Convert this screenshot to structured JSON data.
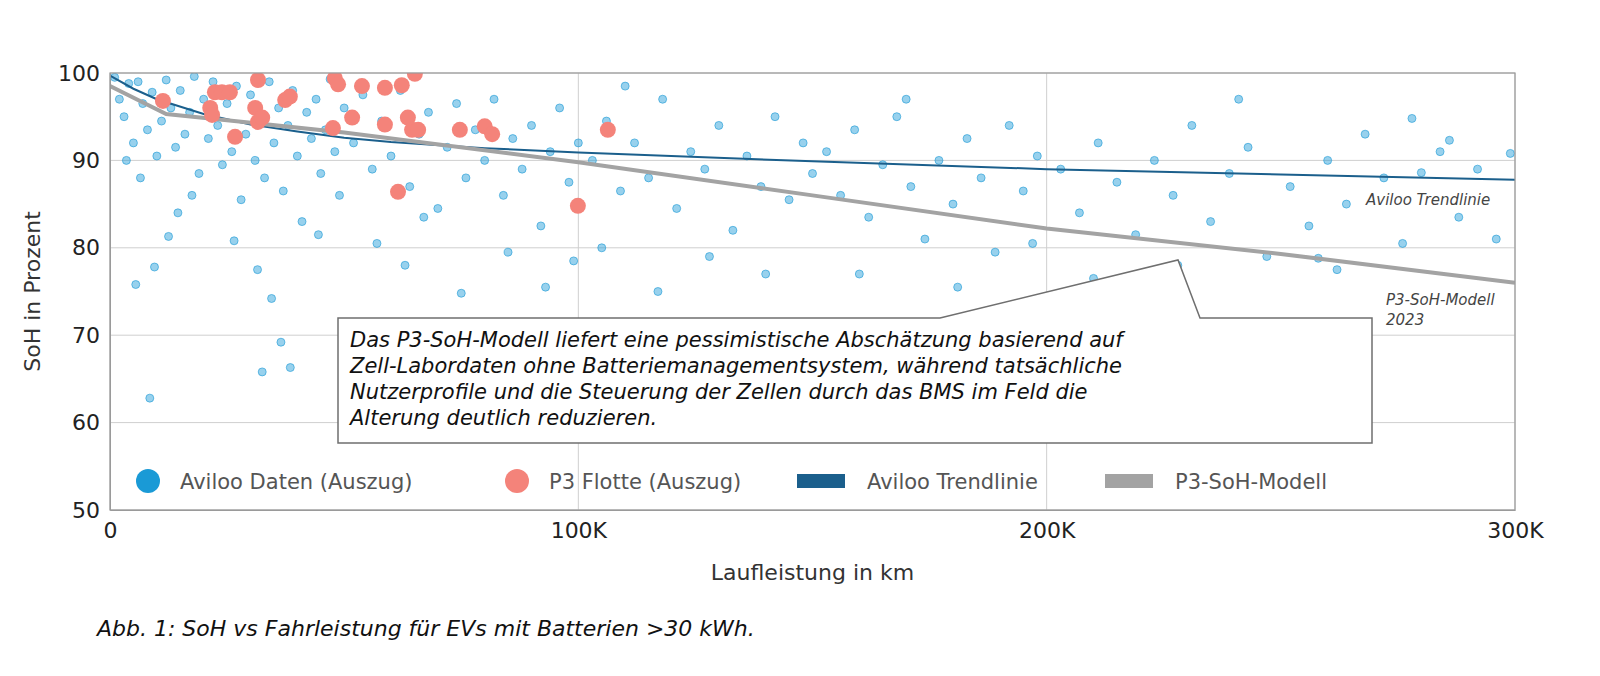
{
  "chart_data": {
    "type": "scatter",
    "caption": "Abb. 1: SoH vs Fahrleistung für EVs mit Batterien >30 kWh.",
    "x_label": "Laufleistung in km",
    "y_label": "SoH in Prozent",
    "xlim": [
      0,
      300000
    ],
    "ylim": [
      50,
      100
    ],
    "xticks": [
      0,
      {
        "value": 100000,
        "label": "100K"
      },
      {
        "value": 200000,
        "label": "200K"
      },
      {
        "value": 300000,
        "label": "300K"
      }
    ],
    "yticks": [
      50,
      60,
      70,
      80,
      90,
      100
    ],
    "grid": true,
    "legend": "bottom",
    "annotations": [
      {
        "lines": [
          "Aviloo Trendlinie"
        ]
      },
      {
        "lines": [
          "P3-SoH-Modell",
          "2023"
        ]
      },
      {
        "lines": [
          "Das P3-SoH-Modell liefert eine pessimistische Abschätzung basierend auf",
          "Zell-Labordaten ohne Batteriemanagementsystem, während tatsächliche",
          "Nutzerprofile und die Steuerung der Zellen durch das BMS im Feld die",
          "Alterung deutlich reduzieren."
        ]
      }
    ],
    "series": [
      {
        "name": "Aviloo Daten (Auszug)",
        "type": "scatter",
        "marker": "circle",
        "color": "#1a9ad6",
        "x": [
          1000,
          2000,
          3000,
          4000,
          5000,
          6000,
          7000,
          8000,
          9000,
          10000,
          11000,
          12000,
          13000,
          14000,
          15000,
          16000,
          17000,
          18000,
          19000,
          20000,
          3500,
          5500,
          9500,
          8500,
          14500,
          12500,
          17500,
          6500,
          21000,
          22000,
          23000,
          24000,
          25000,
          26000,
          27000,
          28000,
          29000,
          30000,
          31000,
          32000,
          33000,
          34000,
          35000,
          36000,
          37000,
          38000,
          39000,
          40000,
          41000,
          42000,
          43000,
          44000,
          45000,
          46000,
          47000,
          48000,
          49000,
          50000,
          31500,
          32500,
          34500,
          36500,
          38500,
          26500,
          44500,
          52000,
          54000,
          56000,
          58000,
          60000,
          62000,
          64000,
          66000,
          68000,
          70000,
          72000,
          74000,
          76000,
          78000,
          80000,
          82000,
          84000,
          86000,
          88000,
          90000,
          92000,
          94000,
          96000,
          98000,
          100000,
          57000,
          63000,
          75000,
          85000,
          93000,
          99000,
          67000,
          103000,
          106000,
          109000,
          112000,
          115000,
          118000,
          121000,
          124000,
          127000,
          130000,
          133000,
          136000,
          139000,
          142000,
          145000,
          148000,
          105000,
          117000,
          128000,
          140000,
          150000,
          110000,
          153000,
          156000,
          159000,
          162000,
          165000,
          168000,
          171000,
          174000,
          177000,
          180000,
          183000,
          186000,
          189000,
          192000,
          195000,
          198000,
          160000,
          181000,
          197000,
          170000,
          203000,
          207000,
          211000,
          215000,
          219000,
          223000,
          227000,
          231000,
          235000,
          239000,
          243000,
          247000,
          210000,
          228000,
          241000,
          252000,
          256000,
          260000,
          264000,
          268000,
          272000,
          276000,
          280000,
          284000,
          288000,
          292000,
          296000,
          299000,
          262000,
          286000,
          278000,
          258000
        ],
        "values": [
          99.5,
          97,
          95,
          98.8,
          92,
          99,
          96.5,
          93.5,
          97.8,
          90.5,
          94.5,
          99.2,
          96,
          91.5,
          98,
          93,
          95.5,
          99.6,
          88.5,
          97,
          90,
          75.8,
          77.8,
          62.8,
          84,
          81.3,
          86,
          88,
          92.5,
          99,
          94,
          89.5,
          96.5,
          91,
          98.5,
          85.5,
          93,
          97.5,
          90,
          95,
          88,
          99,
          92,
          96,
          86.5,
          94,
          98,
          90.5,
          83,
          95.5,
          92.5,
          97,
          88.5,
          93.5,
          99.3,
          91,
          86,
          96,
          77.5,
          65.8,
          74.2,
          69.2,
          66.3,
          80.8,
          81.5,
          92,
          97.5,
          89,
          94.5,
          90.5,
          98,
          87,
          93,
          95.5,
          84.5,
          91.5,
          96.5,
          88,
          93.5,
          90,
          97,
          86,
          92.5,
          89,
          94,
          82.5,
          91,
          96,
          87.5,
          92,
          80.5,
          78,
          74.8,
          79.5,
          75.5,
          78.5,
          83.5,
          90,
          94.5,
          86.5,
          92,
          88,
          97,
          84.5,
          91,
          89,
          94,
          82,
          90.5,
          87,
          95,
          85.5,
          92,
          80,
          75,
          79,
          77,
          88.5,
          98.5,
          91,
          86,
          93.5,
          83.5,
          89.5,
          95,
          87,
          81,
          90,
          85,
          92.5,
          88,
          79.5,
          94,
          86.5,
          90.5,
          77,
          75.5,
          80.5,
          97,
          89,
          84,
          92,
          87.5,
          81.5,
          90,
          86,
          94,
          83,
          88.5,
          91.5,
          79,
          76.5,
          78,
          97,
          87,
          82.5,
          90,
          85,
          93,
          88,
          80.5,
          88.6,
          91,
          83.5,
          89,
          81,
          90.8,
          77.5,
          92.3,
          94.8,
          78.8
        ]
      },
      {
        "name": "P3 Flotte (Auszug)",
        "type": "scatter",
        "marker": "circle",
        "color": "#f4837a",
        "x": [
          11300,
          21400,
          22400,
          23900,
          25600,
          21800,
          26700,
          31000,
          31600,
          31600,
          32500,
          37400,
          38400,
          47600,
          48000,
          48700,
          51700,
          53800,
          58700,
          58700,
          61500,
          62300,
          63600,
          64500,
          65100,
          65800,
          74700,
          80000,
          81600,
          99900,
          106300
        ],
        "values": [
          96.8,
          96,
          97.8,
          97.8,
          97.8,
          95.2,
          92.7,
          96,
          94.4,
          99.2,
          94.9,
          96.9,
          97.3,
          93.7,
          99.4,
          98.7,
          94.9,
          98.5,
          94.1,
          98.3,
          86.4,
          98.6,
          94.9,
          93.5,
          99.9,
          93.5,
          93.5,
          93.9,
          93,
          84.8,
          93.5
        ]
      },
      {
        "name": "Aviloo Trendlinie",
        "type": "line",
        "line_style": "solid",
        "color": "#1b5f8c",
        "x": [
          0,
          5000,
          10000,
          20000,
          30000,
          40000,
          50000,
          60000,
          80000,
          100000,
          150000,
          200000,
          250000,
          300000
        ],
        "values": [
          99.7,
          98.2,
          97,
          95.3,
          94.1,
          93.3,
          92.6,
          92.1,
          91.4,
          90.9,
          89.9,
          89,
          88.4,
          87.8
        ]
      },
      {
        "name": "P3-SoH-Modell",
        "type": "line",
        "line_style": "solid",
        "color": "#a3a3a3",
        "x": [
          0,
          12000,
          50000,
          100000,
          150000,
          200000,
          250000,
          300000
        ],
        "values": [
          98.5,
          95.3,
          93.2,
          89.8,
          86,
          82.2,
          79.3,
          76
        ]
      }
    ]
  }
}
